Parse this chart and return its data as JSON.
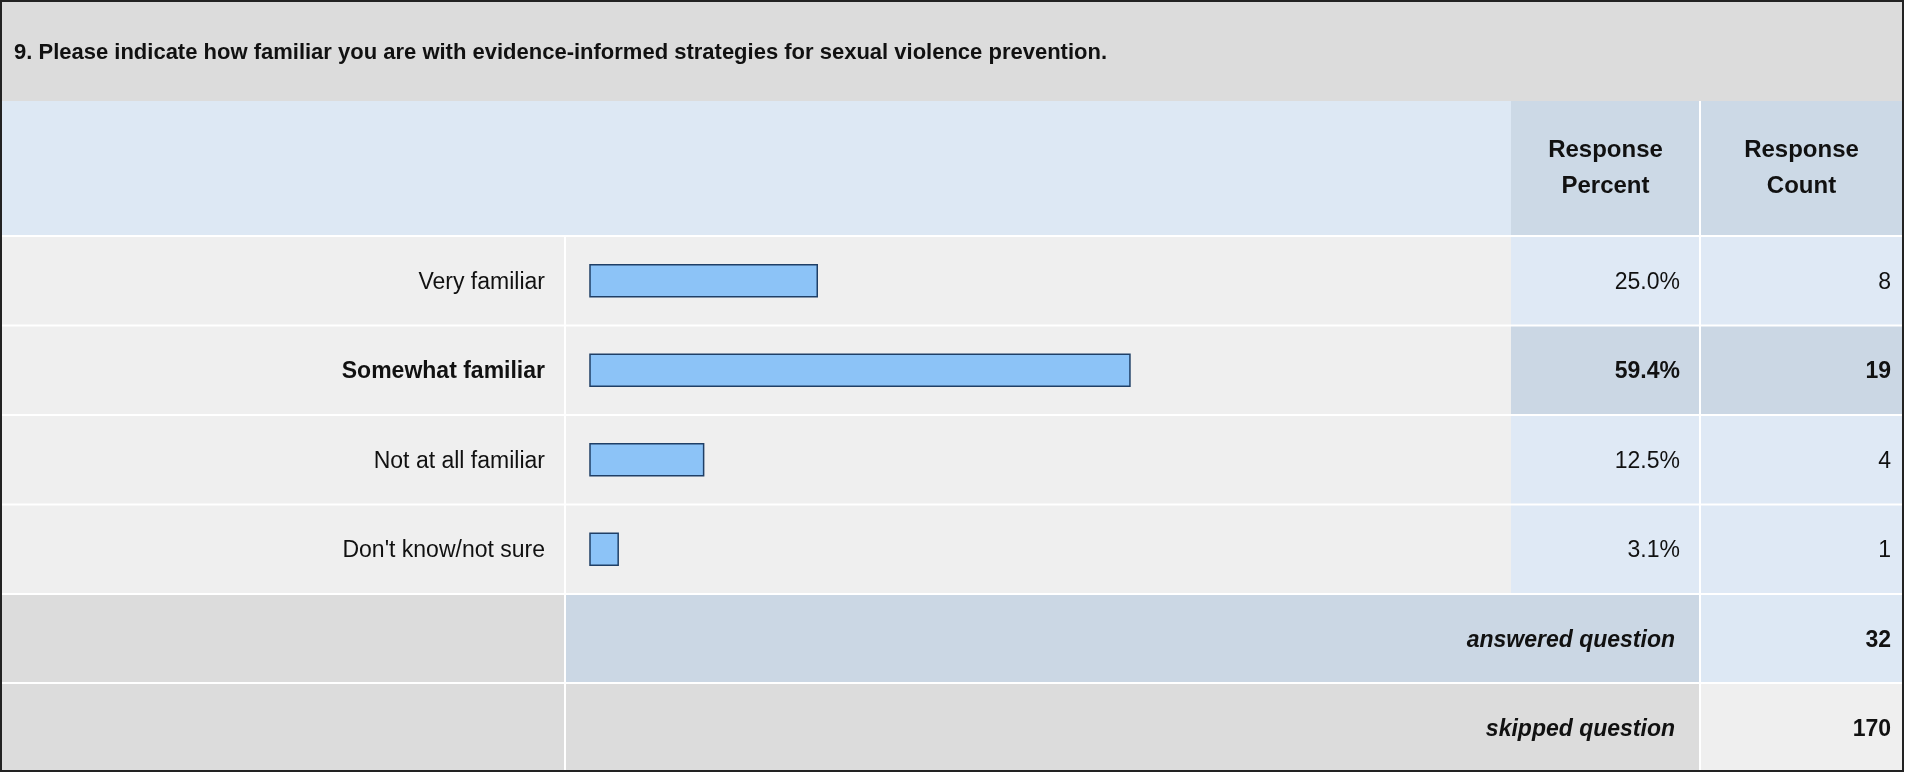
{
  "chart_data": {
    "type": "bar",
    "orientation": "horizontal",
    "title": "9. Please indicate how familiar you are with evidence-informed strategies for sexual violence prevention.",
    "categories": [
      "Very familiar",
      "Somewhat familiar",
      "Not at all familiar",
      "Don't know/not sure"
    ],
    "values": [
      25.0,
      59.4,
      12.5,
      3.1
    ],
    "value_labels": [
      "25.0%",
      "59.4%",
      "12.5%",
      "3.1%"
    ],
    "color": "#8cc3f7",
    "annotations": [
      "Response Percent",
      "Response Count",
      "8",
      "19",
      "4",
      "1",
      "answered question",
      "32",
      "skipped question",
      "170"
    ]
  }
}
